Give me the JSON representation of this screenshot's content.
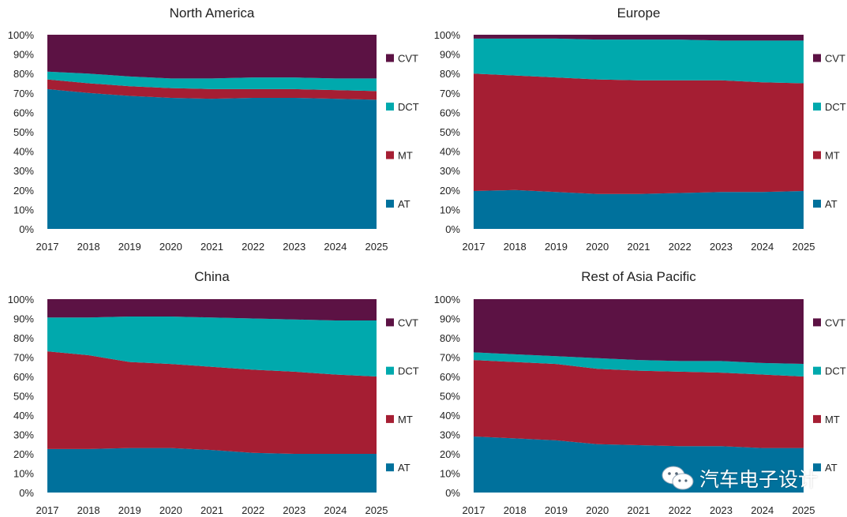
{
  "colors": {
    "AT": "#00719c",
    "MT": "#a51e33",
    "DCT": "#00a9ad",
    "CVT": "#5c1244"
  },
  "watermark": {
    "icon": "wechat-icon",
    "text": "汽车电子设计"
  },
  "chart_data": [
    {
      "type": "area",
      "stacked": "percent",
      "title": "North America",
      "categories": [
        "2017",
        "2018",
        "2019",
        "2020",
        "2021",
        "2022",
        "2023",
        "2024",
        "2025"
      ],
      "ylim": [
        0,
        100
      ],
      "yticks": [
        "0%",
        "10%",
        "20%",
        "30%",
        "40%",
        "50%",
        "60%",
        "70%",
        "80%",
        "90%",
        "100%"
      ],
      "legend": "right",
      "series": [
        {
          "name": "AT",
          "values": [
            72,
            70,
            68.5,
            67.5,
            67,
            67.5,
            67.5,
            67,
            66.5
          ]
        },
        {
          "name": "MT",
          "values": [
            5,
            5,
            5,
            5,
            5,
            4.5,
            4.5,
            4.5,
            4.5
          ]
        },
        {
          "name": "DCT",
          "values": [
            4,
            5,
            5,
            5,
            5.5,
            6,
            6,
            6,
            6.5
          ]
        },
        {
          "name": "CVT",
          "values": [
            19,
            20,
            21.5,
            22.5,
            22.5,
            22,
            22,
            22.5,
            22.5
          ]
        }
      ]
    },
    {
      "type": "area",
      "stacked": "percent",
      "title": "Europe",
      "categories": [
        "2017",
        "2018",
        "2019",
        "2020",
        "2021",
        "2022",
        "2023",
        "2024",
        "2025"
      ],
      "ylim": [
        0,
        100
      ],
      "yticks": [
        "0%",
        "10%",
        "20%",
        "30%",
        "40%",
        "50%",
        "60%",
        "70%",
        "80%",
        "90%",
        "100%"
      ],
      "legend": "right",
      "series": [
        {
          "name": "AT",
          "values": [
            19.5,
            20,
            19,
            18,
            18,
            18.5,
            19,
            19,
            19.5
          ]
        },
        {
          "name": "MT",
          "values": [
            60.5,
            59,
            59,
            59,
            58.5,
            58,
            57.5,
            56.5,
            55.5
          ]
        },
        {
          "name": "DCT",
          "values": [
            18,
            19,
            20,
            20.5,
            21,
            21,
            20.5,
            21.5,
            22
          ]
        },
        {
          "name": "CVT",
          "values": [
            2,
            2,
            2,
            2.5,
            2.5,
            2.5,
            3,
            3,
            3
          ]
        }
      ]
    },
    {
      "type": "area",
      "stacked": "percent",
      "title": "China",
      "categories": [
        "2017",
        "2018",
        "2019",
        "2020",
        "2021",
        "2022",
        "2023",
        "2024",
        "2025"
      ],
      "ylim": [
        0,
        100
      ],
      "yticks": [
        "0%",
        "10%",
        "20%",
        "30%",
        "40%",
        "50%",
        "60%",
        "70%",
        "80%",
        "90%",
        "100%"
      ],
      "legend": "right",
      "series": [
        {
          "name": "AT",
          "values": [
            22.5,
            22.5,
            23,
            23,
            22,
            20.5,
            20,
            20,
            20
          ]
        },
        {
          "name": "MT",
          "values": [
            50.5,
            48.5,
            44.5,
            43.5,
            43,
            43,
            42.5,
            41,
            40
          ]
        },
        {
          "name": "DCT",
          "values": [
            17.5,
            19.5,
            23.5,
            24.5,
            25.5,
            26.5,
            27,
            28,
            29
          ]
        },
        {
          "name": "CVT",
          "values": [
            9.5,
            9.5,
            9,
            9,
            9.5,
            10,
            10.5,
            11,
            11
          ]
        }
      ]
    },
    {
      "type": "area",
      "stacked": "percent",
      "title": "Rest of Asia Pacific",
      "categories": [
        "2017",
        "2018",
        "2019",
        "2020",
        "2021",
        "2022",
        "2023",
        "2024",
        "2025"
      ],
      "ylim": [
        0,
        100
      ],
      "yticks": [
        "0%",
        "10%",
        "20%",
        "30%",
        "40%",
        "50%",
        "60%",
        "70%",
        "80%",
        "90%",
        "100%"
      ],
      "legend": "right",
      "series": [
        {
          "name": "AT",
          "values": [
            29,
            28,
            27,
            25,
            24.5,
            24,
            24,
            23,
            23
          ]
        },
        {
          "name": "MT",
          "values": [
            39.5,
            39.5,
            39.5,
            39,
            38.5,
            38.5,
            38,
            38,
            37
          ]
        },
        {
          "name": "DCT",
          "values": [
            4,
            4,
            4,
            5.5,
            5.5,
            5.5,
            6,
            6,
            6.5
          ]
        },
        {
          "name": "CVT",
          "values": [
            27.5,
            28.5,
            29.5,
            30.5,
            31.5,
            32,
            32,
            33,
            33.5
          ]
        }
      ]
    }
  ]
}
